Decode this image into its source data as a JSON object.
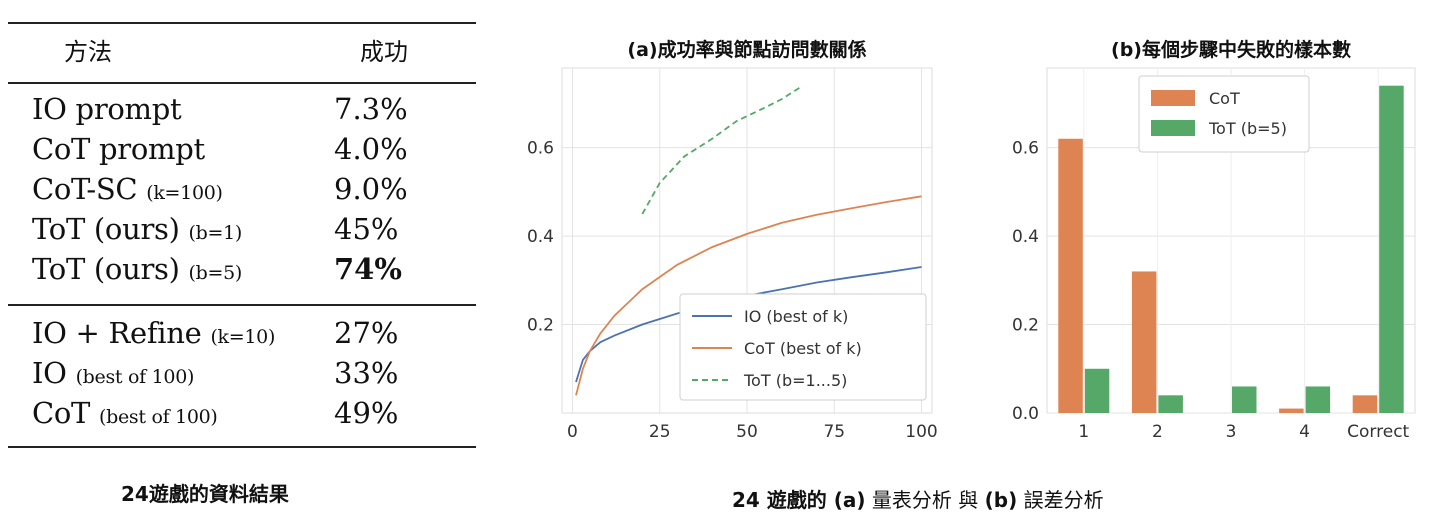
{
  "table": {
    "header": {
      "method": "方法",
      "success": "成功"
    },
    "group1": [
      {
        "method": "IO prompt",
        "param": "",
        "success": "7.3%",
        "bold": false
      },
      {
        "method": "CoT prompt",
        "param": "",
        "success": "4.0%",
        "bold": false
      },
      {
        "method": "CoT-SC",
        "param": "(k=100)",
        "success": "9.0%",
        "bold": false
      },
      {
        "method": "ToT (ours)",
        "param": "(b=1)",
        "success": "45%",
        "bold": false
      },
      {
        "method": "ToT (ours)",
        "param": "(b=5)",
        "success": "74%",
        "bold": true
      }
    ],
    "group2": [
      {
        "method": "IO + Refine",
        "param": "(k=10)",
        "success": "27%",
        "bold": false
      },
      {
        "method": "IO",
        "param": "(best of 100)",
        "success": "33%",
        "bold": false
      },
      {
        "method": "CoT",
        "param": "(best of 100)",
        "success": "49%",
        "bold": false
      }
    ],
    "caption": "24遊戲的資料結果"
  },
  "figure_caption": {
    "p1": "24 遊戲的 ",
    "p2": "(a)",
    "p3": " 量表分析 與 ",
    "p4": "(b)",
    "p5": " 誤差分析"
  },
  "chart_data": [
    {
      "type": "line",
      "title": "(a)成功率與節點訪問數關係",
      "xlabel": "",
      "ylabel": "",
      "xlim": [
        -3,
        103
      ],
      "ylim": [
        0,
        0.78
      ],
      "xticks": [
        0,
        25,
        50,
        75,
        100
      ],
      "yticks": [
        0.2,
        0.4,
        0.6
      ],
      "grid": true,
      "legend_position": "lower-right",
      "series": [
        {
          "name": "IO (best of k)",
          "color": "#4c72b0",
          "dash": false,
          "x": [
            1,
            3,
            5,
            8,
            12,
            20,
            30,
            40,
            50,
            60,
            70,
            80,
            90,
            100
          ],
          "y": [
            0.07,
            0.12,
            0.14,
            0.16,
            0.175,
            0.2,
            0.225,
            0.245,
            0.265,
            0.28,
            0.295,
            0.307,
            0.318,
            0.33
          ]
        },
        {
          "name": "CoT (best of k)",
          "color": "#dd8452",
          "dash": false,
          "x": [
            1,
            3,
            5,
            8,
            12,
            20,
            30,
            40,
            50,
            60,
            70,
            80,
            90,
            100
          ],
          "y": [
            0.04,
            0.1,
            0.14,
            0.18,
            0.22,
            0.28,
            0.335,
            0.375,
            0.405,
            0.43,
            0.448,
            0.463,
            0.477,
            0.49
          ]
        },
        {
          "name": "ToT (b=1...5)",
          "color": "#55a868",
          "dash": true,
          "x": [
            20,
            25,
            32,
            40,
            47,
            55,
            60,
            66
          ],
          "y": [
            0.45,
            0.52,
            0.58,
            0.62,
            0.66,
            0.69,
            0.71,
            0.74
          ]
        }
      ]
    },
    {
      "type": "bar",
      "title": "(b)每個步驟中失敗的樣本數",
      "xlabel": "",
      "ylabel": "",
      "categories": [
        "1",
        "2",
        "3",
        "4",
        "Correct"
      ],
      "ylim": [
        0,
        0.78
      ],
      "yticks": [
        0.0,
        0.2,
        0.4,
        0.6
      ],
      "grid": true,
      "legend_position": "top-center",
      "series": [
        {
          "name": "CoT",
          "color": "#dd8452",
          "values": [
            0.62,
            0.32,
            0.0,
            0.01,
            0.04
          ]
        },
        {
          "name": "ToT (b=5)",
          "color": "#55a868",
          "values": [
            0.1,
            0.04,
            0.06,
            0.06,
            0.74
          ]
        }
      ]
    }
  ]
}
